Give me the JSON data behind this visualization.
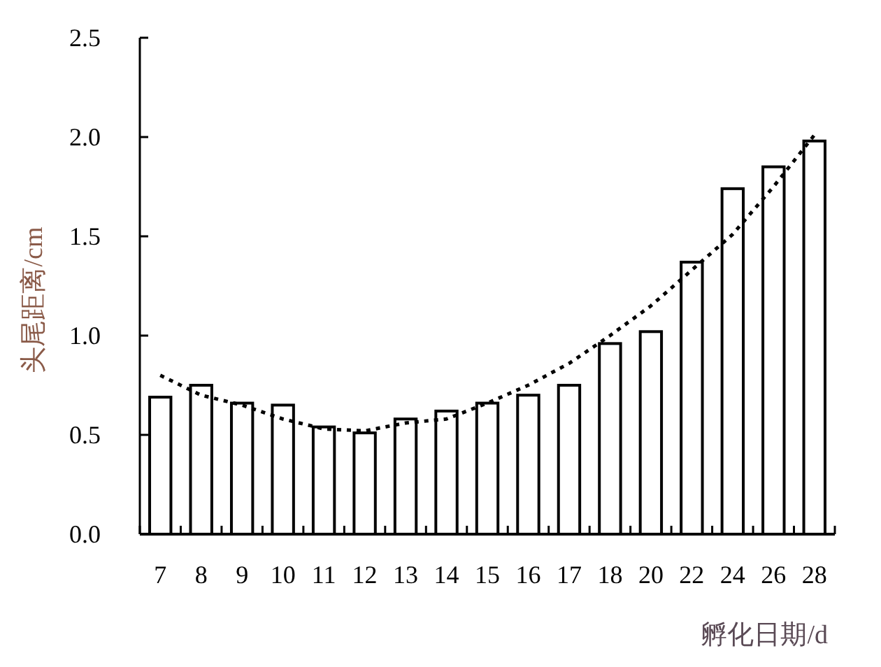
{
  "chart_data": {
    "type": "bar",
    "xlabel": "孵化日期/d",
    "ylabel": "头尾距离/cm",
    "categories": [
      "7",
      "8",
      "9",
      "10",
      "11",
      "12",
      "13",
      "14",
      "15",
      "16",
      "17",
      "18",
      "20",
      "22",
      "24",
      "26",
      "28"
    ],
    "series": [
      {
        "color": "#ffffff",
        "values": [
          0.69,
          0.75,
          0.66,
          0.65,
          0.54,
          0.51,
          0.58,
          0.62,
          0.66,
          0.7,
          0.75,
          0.96,
          1.02,
          1.37,
          1.74,
          1.85,
          1.98
        ]
      },
      {
        "type": "line",
        "color": "#000000",
        "line_style": "dotted",
        "values": [
          0.8,
          0.7,
          0.65,
          0.58,
          0.53,
          0.52,
          0.56,
          0.58,
          0.66,
          0.75,
          0.86,
          1.0,
          1.15,
          1.33,
          1.51,
          1.75,
          2.01
        ]
      }
    ],
    "ylim": [
      0,
      2.5
    ],
    "yticks": [
      {
        "value": 0,
        "label": "0.0"
      },
      {
        "value": 0.5,
        "label": "0.5"
      },
      {
        "value": 1,
        "label": "1.0"
      },
      {
        "value": 1.5,
        "label": "1.5"
      },
      {
        "value": 2,
        "label": "2.0"
      },
      {
        "value": 2.5,
        "label": "2.5"
      }
    ],
    "grid": false,
    "marker": "none"
  }
}
